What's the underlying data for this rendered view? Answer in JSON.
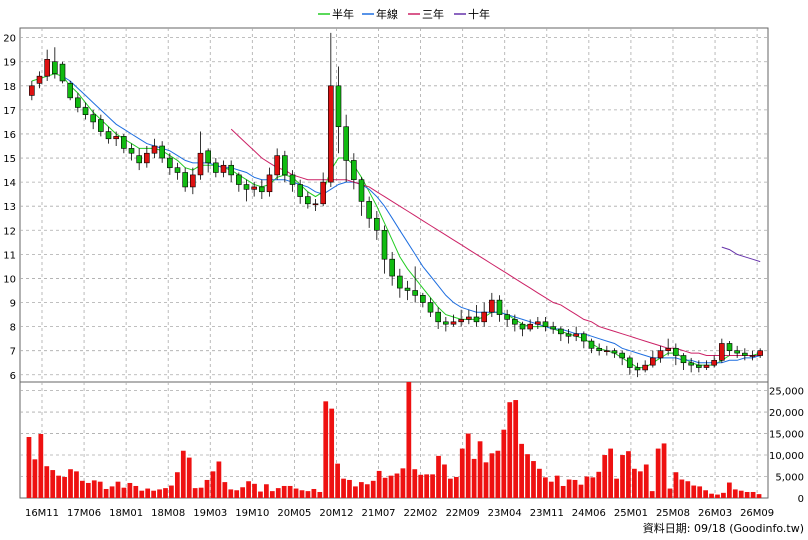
{
  "legend": {
    "items": [
      {
        "label": "半年",
        "color": "#22cc22"
      },
      {
        "label": "年線",
        "color": "#1f6fe0"
      },
      {
        "label": "三年",
        "color": "#cc2266"
      },
      {
        "label": "十年",
        "color": "#6633aa"
      }
    ]
  },
  "footer": {
    "note": "資料日期: 09/18  (Goodinfo.tw)"
  },
  "chart_data": [
    {
      "type": "candlestick",
      "title": "",
      "xlabel": "",
      "ylabel": "",
      "ylim": [
        5.7,
        20.4
      ],
      "y_ticks": [
        6,
        7,
        8,
        9,
        10,
        11,
        12,
        13,
        14,
        15,
        16,
        17,
        18,
        19,
        20
      ],
      "x_ticks": [
        "16M11",
        "17M06",
        "18M01",
        "18M08",
        "19M03",
        "19M10",
        "20M05",
        "20M12",
        "21M07",
        "22M02",
        "22M09",
        "23M04",
        "23M11",
        "24M06",
        "25M01",
        "25M08",
        "26M03",
        "26M09"
      ],
      "colors": {
        "up": "#dd1111",
        "down": "#11bb11"
      },
      "grid": true,
      "candles": [
        [
          17.6,
          18.0,
          18.2,
          17.4
        ],
        [
          18.1,
          18.4,
          18.6,
          17.9
        ],
        [
          18.4,
          19.1,
          19.5,
          18.2
        ],
        [
          19.0,
          18.5,
          19.6,
          18.3
        ],
        [
          18.9,
          18.2,
          19.0,
          18.1
        ],
        [
          18.1,
          17.5,
          18.2,
          17.4
        ],
        [
          17.5,
          17.1,
          17.7,
          16.9
        ],
        [
          17.1,
          16.8,
          17.3,
          16.6
        ],
        [
          16.8,
          16.5,
          17.0,
          16.2
        ],
        [
          16.6,
          16.1,
          16.8,
          15.9
        ],
        [
          16.1,
          15.8,
          16.3,
          15.6
        ],
        [
          15.8,
          15.9,
          16.1,
          15.5
        ],
        [
          15.9,
          15.4,
          16.0,
          15.2
        ],
        [
          15.4,
          15.2,
          15.6,
          14.9
        ],
        [
          15.1,
          14.8,
          15.4,
          14.5
        ],
        [
          14.8,
          15.2,
          15.5,
          14.6
        ],
        [
          15.2,
          15.5,
          15.8,
          15.0
        ],
        [
          15.5,
          15.0,
          15.7,
          14.8
        ],
        [
          15.0,
          14.6,
          15.2,
          14.3
        ],
        [
          14.6,
          14.4,
          14.8,
          14.1
        ],
        [
          14.4,
          13.8,
          14.6,
          13.6
        ],
        [
          13.8,
          14.3,
          14.6,
          13.5
        ],
        [
          14.3,
          15.2,
          16.1,
          14.1
        ],
        [
          15.3,
          14.8,
          15.4,
          14.4
        ],
        [
          14.8,
          14.4,
          15.0,
          14.2
        ],
        [
          14.4,
          14.7,
          14.9,
          14.2
        ],
        [
          14.7,
          14.3,
          14.9,
          14.0
        ],
        [
          14.3,
          13.9,
          14.4,
          13.6
        ],
        [
          13.9,
          13.7,
          14.1,
          13.2
        ],
        [
          13.7,
          13.8,
          14.0,
          13.4
        ],
        [
          13.8,
          13.6,
          14.1,
          13.3
        ],
        [
          13.6,
          14.3,
          14.6,
          13.4
        ],
        [
          14.3,
          15.1,
          15.4,
          14.1
        ],
        [
          15.1,
          14.3,
          15.3,
          14.0
        ],
        [
          14.3,
          13.9,
          14.5,
          13.6
        ],
        [
          13.9,
          13.4,
          14.1,
          13.1
        ],
        [
          13.4,
          13.1,
          13.6,
          12.9
        ],
        [
          13.1,
          13.1,
          13.3,
          12.8
        ],
        [
          13.1,
          14.0,
          14.4,
          13.0
        ],
        [
          14.0,
          18.0,
          20.2,
          13.8
        ],
        [
          18.0,
          16.3,
          18.8,
          15.2
        ],
        [
          16.3,
          14.9,
          16.8,
          14.0
        ],
        [
          14.9,
          14.1,
          15.2,
          13.7
        ],
        [
          14.1,
          13.2,
          14.2,
          12.6
        ],
        [
          13.2,
          12.5,
          13.4,
          12.1
        ],
        [
          12.5,
          12.0,
          12.8,
          11.6
        ],
        [
          12.0,
          10.8,
          12.2,
          10.2
        ],
        [
          10.8,
          10.1,
          11.1,
          9.7
        ],
        [
          10.1,
          9.6,
          10.4,
          9.2
        ],
        [
          9.6,
          9.5,
          9.9,
          9.1
        ],
        [
          9.5,
          9.3,
          10.5,
          9.0
        ],
        [
          9.3,
          9.0,
          9.4,
          8.8
        ],
        [
          9.0,
          8.6,
          9.2,
          8.4
        ],
        [
          8.6,
          8.2,
          8.8,
          7.9
        ],
        [
          8.2,
          8.1,
          8.4,
          7.8
        ],
        [
          8.1,
          8.2,
          8.5,
          8.0
        ],
        [
          8.2,
          8.3,
          8.7,
          8.0
        ],
        [
          8.3,
          8.4,
          8.7,
          8.1
        ],
        [
          8.4,
          8.2,
          8.9,
          8.0
        ],
        [
          8.2,
          8.6,
          9.0,
          8.0
        ],
        [
          8.6,
          9.1,
          9.4,
          8.4
        ],
        [
          9.1,
          8.5,
          9.3,
          8.2
        ],
        [
          8.5,
          8.3,
          8.7,
          8.0
        ],
        [
          8.3,
          8.1,
          8.5,
          7.8
        ],
        [
          8.1,
          7.9,
          8.2,
          7.6
        ],
        [
          7.9,
          8.1,
          8.3,
          7.8
        ],
        [
          8.1,
          8.2,
          8.4,
          7.9
        ],
        [
          8.2,
          8.0,
          8.4,
          7.8
        ],
        [
          8.0,
          7.9,
          8.2,
          7.7
        ],
        [
          7.9,
          7.7,
          8.0,
          7.4
        ],
        [
          7.7,
          7.6,
          7.9,
          7.3
        ],
        [
          7.6,
          7.7,
          8.0,
          7.4
        ],
        [
          7.7,
          7.4,
          7.8,
          7.1
        ],
        [
          7.4,
          7.1,
          7.5,
          6.9
        ],
        [
          7.1,
          7.0,
          7.3,
          6.8
        ],
        [
          7.0,
          7.0,
          7.2,
          6.8
        ],
        [
          7.0,
          6.9,
          7.1,
          6.7
        ],
        [
          6.9,
          6.7,
          7.0,
          6.4
        ],
        [
          6.7,
          6.3,
          6.8,
          6.0
        ],
        [
          6.3,
          6.2,
          6.5,
          5.9
        ],
        [
          6.2,
          6.4,
          6.6,
          6.1
        ],
        [
          6.4,
          6.7,
          7.0,
          6.3
        ],
        [
          6.7,
          7.0,
          7.2,
          6.5
        ],
        [
          7.0,
          7.1,
          7.5,
          6.8
        ],
        [
          7.1,
          6.8,
          7.3,
          6.4
        ],
        [
          6.8,
          6.5,
          6.9,
          6.2
        ],
        [
          6.5,
          6.4,
          6.7,
          6.1
        ],
        [
          6.4,
          6.3,
          6.6,
          6.1
        ],
        [
          6.3,
          6.4,
          6.6,
          6.2
        ],
        [
          6.4,
          6.6,
          6.8,
          6.3
        ],
        [
          6.6,
          7.3,
          7.5,
          6.5
        ],
        [
          7.3,
          7.0,
          7.4,
          6.8
        ],
        [
          7.0,
          6.9,
          7.2,
          6.7
        ],
        [
          6.9,
          6.8,
          7.1,
          6.6
        ],
        [
          6.8,
          6.8,
          7.0,
          6.6
        ],
        [
          6.8,
          7.0,
          7.1,
          6.7
        ]
      ],
      "series": [
        {
          "name": "半年",
          "color": "#22cc22",
          "values": [
            18.2,
            18.3,
            18.4,
            18.5,
            18.4,
            18.0,
            17.7,
            17.3,
            16.9,
            16.6,
            16.3,
            16.0,
            15.8,
            15.6,
            15.4,
            15.4,
            15.4,
            15.3,
            15.1,
            14.9,
            14.6,
            14.5,
            14.7,
            14.7,
            14.7,
            14.6,
            14.5,
            14.3,
            14.1,
            13.9,
            13.8,
            13.9,
            14.2,
            14.3,
            14.2,
            13.9,
            13.6,
            13.4,
            13.6,
            14.5,
            15.0,
            15.0,
            14.7,
            14.2,
            13.6,
            13.0,
            12.3,
            11.6,
            10.9,
            10.4,
            10.0,
            9.6,
            9.2,
            8.8,
            8.5,
            8.4,
            8.3,
            8.3,
            8.3,
            8.4,
            8.6,
            8.6,
            8.5,
            8.3,
            8.1,
            8.0,
            8.0,
            8.0,
            7.9,
            7.8,
            7.7,
            7.6,
            7.5,
            7.3,
            7.1,
            7.0,
            6.9,
            6.7,
            6.5,
            6.3,
            6.3,
            6.5,
            6.7,
            6.9,
            6.9,
            6.7,
            6.5,
            6.4,
            6.4,
            6.4,
            6.6,
            6.8,
            6.8,
            6.8,
            6.8,
            6.9
          ]
        },
        {
          "name": "年線",
          "color": "#1f6fe0",
          "values": [
            null,
            null,
            null,
            null,
            18.4,
            18.2,
            17.9,
            17.6,
            17.3,
            17.0,
            16.7,
            16.4,
            16.2,
            16.0,
            15.8,
            15.6,
            15.5,
            15.4,
            15.3,
            15.1,
            14.9,
            14.8,
            14.8,
            14.8,
            14.7,
            14.6,
            14.6,
            14.5,
            14.4,
            14.2,
            14.1,
            14.1,
            14.1,
            14.1,
            14.0,
            13.9,
            13.8,
            13.6,
            13.5,
            13.7,
            13.9,
            14.0,
            14.0,
            13.9,
            13.7,
            13.4,
            13.0,
            12.5,
            12.0,
            11.5,
            11.0,
            10.5,
            10.1,
            9.7,
            9.3,
            9.0,
            8.8,
            8.7,
            8.6,
            8.6,
            8.6,
            8.6,
            8.5,
            8.4,
            8.3,
            8.2,
            8.1,
            8.0,
            7.9,
            7.9,
            7.8,
            7.7,
            7.7,
            7.6,
            7.5,
            7.4,
            7.3,
            7.1,
            7.0,
            6.9,
            6.8,
            6.7,
            6.7,
            6.7,
            6.7,
            6.6,
            6.6,
            6.5,
            6.5,
            6.5,
            6.5,
            6.6,
            6.6,
            6.7,
            6.7,
            6.8
          ]
        },
        {
          "name": "三年",
          "color": "#cc2266",
          "values": [
            null,
            null,
            null,
            null,
            null,
            null,
            null,
            null,
            null,
            null,
            null,
            null,
            null,
            null,
            null,
            null,
            null,
            null,
            null,
            null,
            null,
            null,
            null,
            null,
            null,
            null,
            16.2,
            15.9,
            15.6,
            15.3,
            15.0,
            14.8,
            14.6,
            14.5,
            14.3,
            14.2,
            14.1,
            14.1,
            14.1,
            14.1,
            14.1,
            14.1,
            14.0,
            13.9,
            13.8,
            13.6,
            13.4,
            13.2,
            13.0,
            12.8,
            12.6,
            12.4,
            12.2,
            12.0,
            11.8,
            11.6,
            11.4,
            11.2,
            11.0,
            10.8,
            10.6,
            10.4,
            10.2,
            10.0,
            9.8,
            9.6,
            9.4,
            9.2,
            9.0,
            8.9,
            8.7,
            8.5,
            8.3,
            8.2,
            8.0,
            7.9,
            7.8,
            7.7,
            7.6,
            7.5,
            7.4,
            7.3,
            7.2,
            7.1,
            7.1,
            7.0,
            6.9,
            6.9,
            6.8,
            6.8,
            6.8,
            6.8,
            6.8,
            6.8,
            6.8,
            6.8
          ]
        },
        {
          "name": "十年",
          "color": "#6633aa",
          "values": [
            null,
            null,
            null,
            null,
            null,
            null,
            null,
            null,
            null,
            null,
            null,
            null,
            null,
            null,
            null,
            null,
            null,
            null,
            null,
            null,
            null,
            null,
            null,
            null,
            null,
            null,
            null,
            null,
            null,
            null,
            null,
            null,
            null,
            null,
            null,
            null,
            null,
            null,
            null,
            null,
            null,
            null,
            null,
            null,
            null,
            null,
            null,
            null,
            null,
            null,
            null,
            null,
            null,
            null,
            null,
            null,
            null,
            null,
            null,
            null,
            null,
            null,
            null,
            null,
            null,
            null,
            null,
            null,
            null,
            null,
            null,
            null,
            null,
            null,
            null,
            null,
            null,
            null,
            null,
            null,
            null,
            null,
            null,
            null,
            null,
            null,
            null,
            null,
            null,
            null,
            11.3,
            11.2,
            11.0,
            10.9,
            10.8,
            10.7
          ]
        }
      ]
    },
    {
      "type": "bar",
      "title": "",
      "ylabel": "",
      "ylim": [
        0,
        27000
      ],
      "y_ticks": [
        0,
        5000,
        10000,
        15000,
        20000,
        25000
      ],
      "y_tick_labels": [
        "0",
        "5,000",
        "10,000",
        "15,000",
        "20,000",
        "25,000"
      ],
      "bar_color": "#ee1111",
      "values": [
        14200,
        9000,
        14900,
        7400,
        6500,
        5200,
        4900,
        6700,
        6200,
        4000,
        3500,
        4100,
        3800,
        2100,
        2700,
        3800,
        2400,
        3500,
        2800,
        1700,
        2200,
        1700,
        2000,
        2300,
        2900,
        6000,
        11000,
        9400,
        2300,
        2400,
        4200,
        6200,
        8500,
        3700,
        2000,
        1800,
        2500,
        3900,
        3300,
        1500,
        3200,
        1600,
        2300,
        2800,
        2800,
        2200,
        1800,
        1600,
        2100,
        1400,
        22500,
        20800,
        8000,
        4500,
        4200,
        2700,
        3700,
        3200,
        4000,
        6300,
        4700,
        5200,
        5700,
        6900,
        27000,
        6700,
        5400,
        5500,
        5500,
        9800,
        7800,
        4500,
        4900,
        11500,
        15000,
        9100,
        13200,
        8300,
        10400,
        11000,
        15900,
        22300,
        22800,
        12600,
        10200,
        8600,
        6800,
        4800,
        3800,
        5200,
        2800,
        4300,
        4200,
        3100,
        5000,
        4800,
        6100,
        10000,
        11500,
        4500,
        10000,
        10900,
        6800,
        6200,
        7800,
        1600,
        11500,
        12700,
        2200,
        6000,
        4300,
        3900,
        2900,
        2700,
        1800,
        1000,
        800,
        1200,
        3600,
        2000,
        1700,
        1400,
        1400,
        900
      ]
    }
  ]
}
